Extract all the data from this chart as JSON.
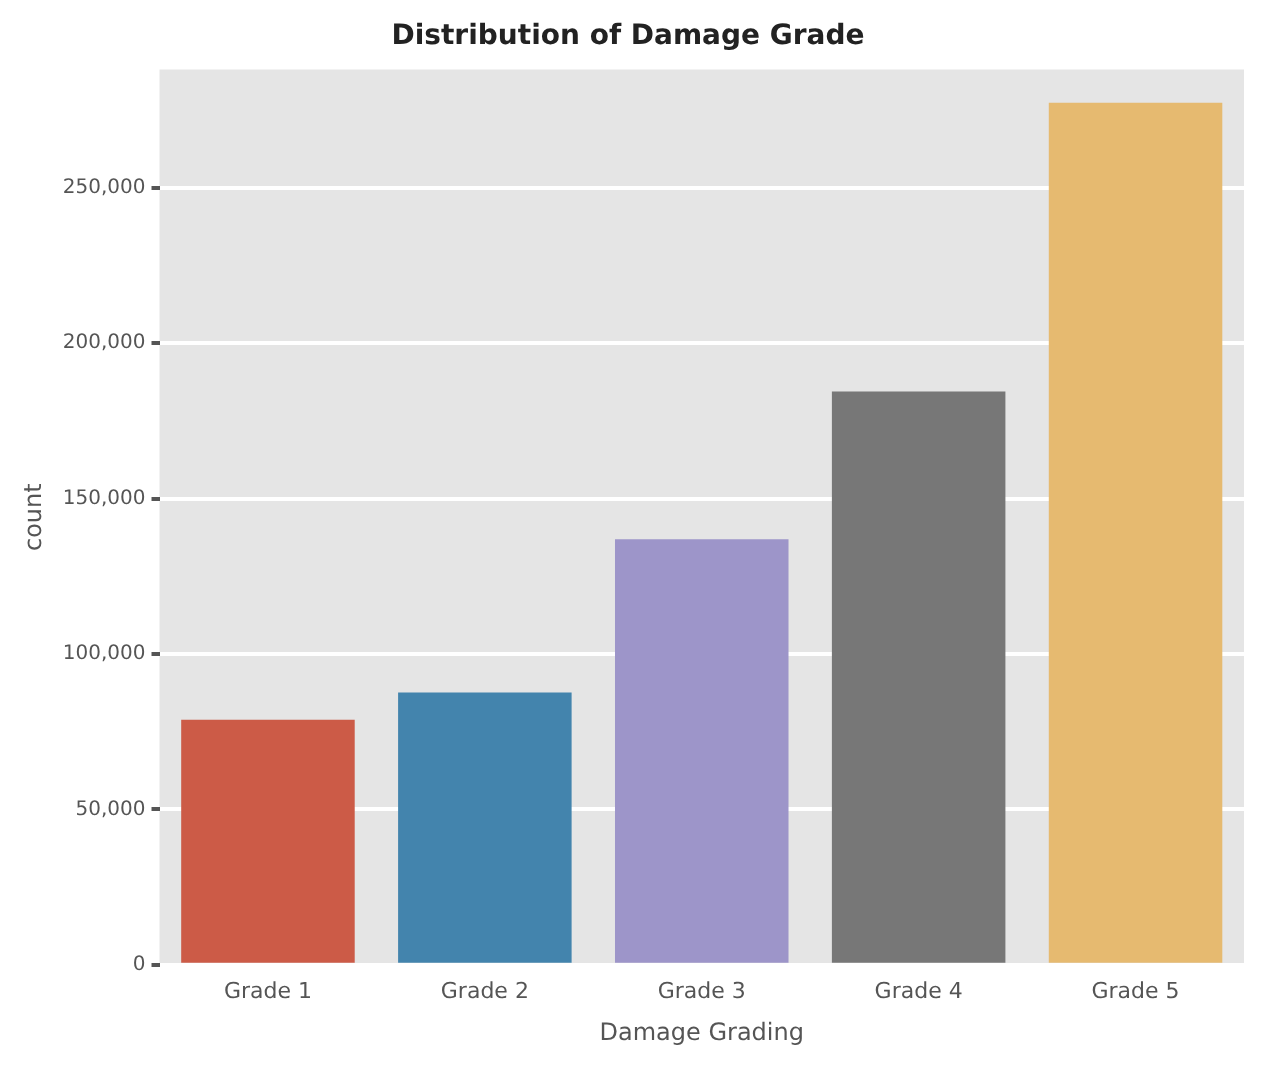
{
  "chart_data": {
    "type": "bar",
    "title": "Distribution of Damage Grade",
    "xlabel": "Damage Grading",
    "ylabel": "count",
    "categories": [
      "Grade 1",
      "Grade 2",
      "Grade 3",
      "Grade 4",
      "Grade 5"
    ],
    "values": [
      78800,
      87600,
      136900,
      184400,
      277300
    ],
    "colors": [
      "#cc5b47",
      "#4384ad",
      "#9d95c9",
      "#777777",
      "#e6ba70"
    ],
    "ylim": [
      0,
      288000
    ],
    "yticks": [
      {
        "value": 0,
        "label": "0"
      },
      {
        "value": 50000,
        "label": "50,000"
      },
      {
        "value": 100000,
        "label": "100,000"
      },
      {
        "value": 150000,
        "label": "150,000"
      },
      {
        "value": 200000,
        "label": "200,000"
      },
      {
        "value": 250000,
        "label": "250,000"
      }
    ],
    "grid": "y"
  }
}
